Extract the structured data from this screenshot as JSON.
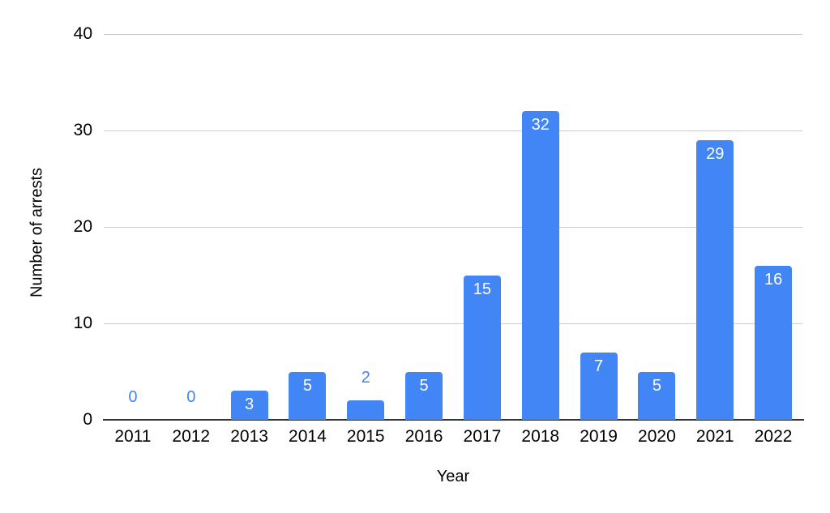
{
  "chart_data": {
    "type": "bar",
    "title": "",
    "xlabel": "Year",
    "ylabel": "Number of arrests",
    "categories": [
      "2011",
      "2012",
      "2013",
      "2014",
      "2015",
      "2016",
      "2017",
      "2018",
      "2019",
      "2020",
      "2021",
      "2022"
    ],
    "values": [
      0,
      0,
      3,
      5,
      2,
      5,
      15,
      32,
      7,
      5,
      29,
      16
    ],
    "ylim": [
      0,
      40
    ],
    "yticks": [
      0,
      10,
      20,
      30,
      40
    ],
    "grid": true,
    "legend_position": "none",
    "bar_color": "#4285F4",
    "data_label_inside_color": "#FFFFFF",
    "data_label_outside_color": "#4285F4",
    "inside_label_min_value": 3,
    "axis_text_color": "#000000",
    "gridline_color": "#CCCCCC",
    "baseline_color": "#333333",
    "background_color": "#FFFFFF"
  }
}
